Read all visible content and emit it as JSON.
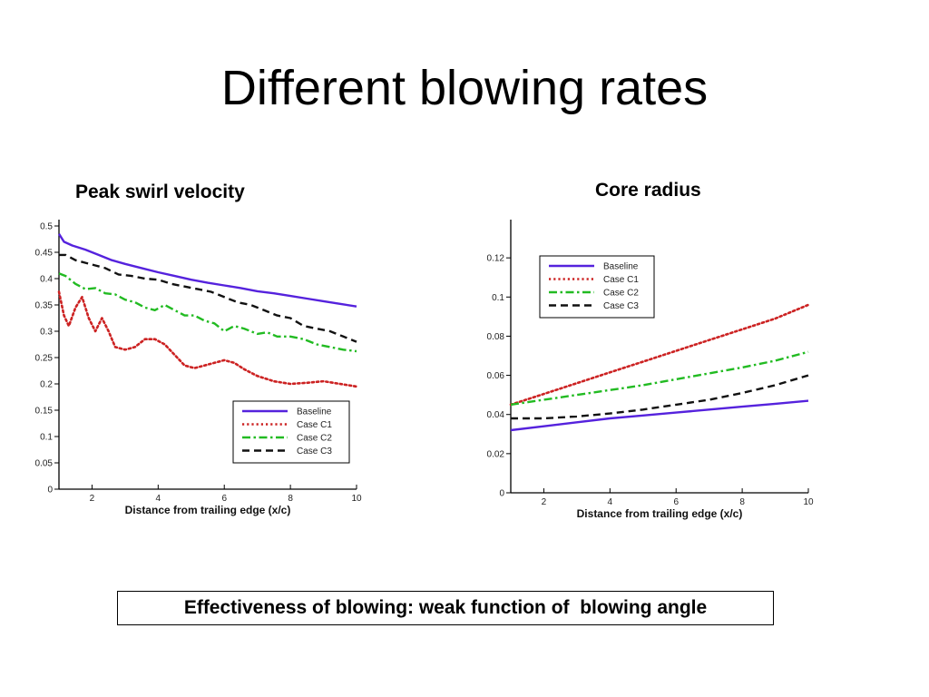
{
  "title": "Different blowing rates",
  "conclusion": "Effectiveness of blowing: weak function of  blowing angle",
  "colors": {
    "Baseline": "#5522dd",
    "Case C1": "#cc2222",
    "Case C2": "#22bb22",
    "Case C3": "#111111"
  },
  "chart_data": [
    {
      "type": "line",
      "title": "Peak swirl velocity",
      "xlabel": "Distance from trailing edge (x/c)",
      "ylabel": "",
      "xlim": [
        1,
        10
      ],
      "ylim": [
        0,
        0.5
      ],
      "xticks": [
        2,
        4,
        6,
        8,
        10
      ],
      "yticks": [
        0,
        0.05,
        0.1,
        0.15,
        0.2,
        0.25,
        0.3,
        0.35,
        0.4,
        0.45,
        0.5
      ],
      "legend_position": "bottom-right",
      "grid": false,
      "series": [
        {
          "name": "Baseline",
          "style": "solid",
          "x": [
            1,
            1.15,
            1.4,
            1.8,
            2.2,
            2.6,
            3,
            3.5,
            4,
            4.5,
            5,
            5.5,
            6,
            6.5,
            7,
            7.5,
            8,
            8.5,
            9,
            9.5,
            10
          ],
          "y": [
            0.485,
            0.47,
            0.463,
            0.455,
            0.445,
            0.435,
            0.428,
            0.42,
            0.412,
            0.405,
            0.398,
            0.392,
            0.387,
            0.382,
            0.376,
            0.372,
            0.367,
            0.362,
            0.357,
            0.352,
            0.347
          ]
        },
        {
          "name": "Case C1",
          "style": "dotted",
          "x": [
            1,
            1.15,
            1.3,
            1.5,
            1.7,
            1.9,
            2.1,
            2.3,
            2.5,
            2.7,
            3,
            3.3,
            3.6,
            3.9,
            4.2,
            4.5,
            4.8,
            5.1,
            5.4,
            5.7,
            6,
            6.3,
            6.6,
            7,
            7.5,
            8,
            8.5,
            9,
            9.5,
            10
          ],
          "y": [
            0.375,
            0.33,
            0.31,
            0.345,
            0.365,
            0.325,
            0.3,
            0.325,
            0.3,
            0.27,
            0.265,
            0.27,
            0.285,
            0.285,
            0.275,
            0.255,
            0.235,
            0.23,
            0.235,
            0.24,
            0.245,
            0.24,
            0.228,
            0.215,
            0.205,
            0.2,
            0.202,
            0.205,
            0.2,
            0.195
          ]
        },
        {
          "name": "Case C2",
          "style": "dashdot",
          "x": [
            1,
            1.2,
            1.5,
            1.8,
            2.1,
            2.4,
            2.7,
            3,
            3.3,
            3.6,
            3.9,
            4.2,
            4.5,
            4.8,
            5.1,
            5.4,
            5.7,
            6,
            6.3,
            6.6,
            7,
            7.3,
            7.6,
            8,
            8.4,
            8.8,
            9.2,
            9.6,
            10
          ],
          "y": [
            0.41,
            0.405,
            0.39,
            0.38,
            0.382,
            0.372,
            0.37,
            0.36,
            0.355,
            0.345,
            0.34,
            0.35,
            0.34,
            0.33,
            0.33,
            0.32,
            0.315,
            0.3,
            0.31,
            0.305,
            0.295,
            0.298,
            0.29,
            0.29,
            0.285,
            0.275,
            0.27,
            0.265,
            0.262
          ]
        },
        {
          "name": "Case C3",
          "style": "dashed",
          "x": [
            1,
            1.2,
            1.5,
            1.8,
            2.1,
            2.4,
            2.8,
            3.2,
            3.6,
            4,
            4.4,
            4.8,
            5.2,
            5.6,
            6,
            6.4,
            6.8,
            7.2,
            7.6,
            8,
            8.4,
            8.8,
            9.2,
            9.6,
            10
          ],
          "y": [
            0.445,
            0.445,
            0.435,
            0.43,
            0.425,
            0.42,
            0.408,
            0.405,
            0.4,
            0.398,
            0.39,
            0.385,
            0.38,
            0.375,
            0.365,
            0.355,
            0.35,
            0.34,
            0.33,
            0.325,
            0.31,
            0.305,
            0.3,
            0.29,
            0.28
          ]
        }
      ]
    },
    {
      "type": "line",
      "title": "Core radius",
      "xlabel": "Distance from trailing edge (x/c)",
      "ylabel": "",
      "xlim": [
        1,
        10
      ],
      "ylim": [
        0,
        0.14
      ],
      "xticks": [
        2,
        4,
        6,
        8,
        10
      ],
      "yticks": [
        0,
        0.02,
        0.04,
        0.06,
        0.08,
        0.1,
        0.12
      ],
      "legend_position": "top-left",
      "grid": false,
      "series": [
        {
          "name": "Baseline",
          "style": "solid",
          "x": [
            1,
            2,
            3,
            4,
            5,
            6,
            7,
            8,
            9,
            10
          ],
          "y": [
            0.032,
            0.034,
            0.036,
            0.038,
            0.0395,
            0.041,
            0.0425,
            0.044,
            0.0455,
            0.047
          ]
        },
        {
          "name": "Case C1",
          "style": "dotted",
          "x": [
            1,
            2,
            3,
            4,
            5,
            6,
            7,
            8,
            9,
            10
          ],
          "y": [
            0.045,
            0.0505,
            0.056,
            0.0615,
            0.067,
            0.0725,
            0.078,
            0.0835,
            0.089,
            0.096
          ]
        },
        {
          "name": "Case C2",
          "style": "dashdot",
          "x": [
            1,
            2,
            3,
            4,
            5,
            6,
            7,
            8,
            9,
            10
          ],
          "y": [
            0.045,
            0.0475,
            0.05,
            0.0525,
            0.055,
            0.058,
            0.061,
            0.064,
            0.0675,
            0.072
          ]
        },
        {
          "name": "Case C3",
          "style": "dashed",
          "x": [
            1,
            2,
            3,
            4,
            5,
            6,
            7,
            8,
            9,
            10
          ],
          "y": [
            0.038,
            0.038,
            0.039,
            0.0405,
            0.0425,
            0.045,
            0.0475,
            0.051,
            0.055,
            0.06
          ]
        }
      ]
    }
  ]
}
